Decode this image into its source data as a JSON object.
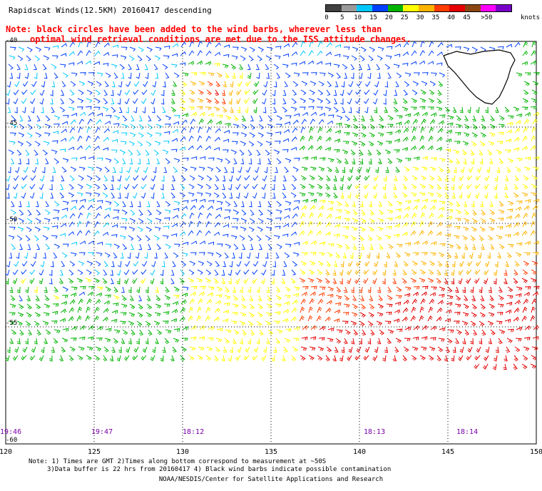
{
  "header": {
    "title": "Rapidscat Winds(12.5KM) 20160417 descending",
    "note_line1": "Note: black circles have been added to the wind barbs, wherever less than",
    "note_line2": "optimal wind retrieval conditions are met due to the ISS attitude changes."
  },
  "colorbar": {
    "ticks": [
      "0",
      "5",
      "10",
      "15",
      "20",
      "25",
      "30",
      "35",
      "40",
      "45",
      ">50"
    ],
    "unit": "knots",
    "colors": [
      "#404040",
      "#9a9a9a",
      "#00c8ff",
      "#0040ff",
      "#00b400",
      "#ffff00",
      "#ffb400",
      "#ff3c00",
      "#e60000",
      "#8b4513",
      "#ff00ff",
      "#7800c8"
    ]
  },
  "axes": {
    "lon_labels": [
      "120",
      "125",
      "130",
      "135",
      "140",
      "145",
      "150"
    ],
    "lat_labels": [
      "-40",
      "-45",
      "-50",
      "-55",
      "-60"
    ]
  },
  "time_labels": [
    "19:46",
    "19:47",
    "18:12",
    "18:13",
    "18:14"
  ],
  "footnotes": {
    "line1": "Note: 1) Times are GMT 2)Times along bottom correspond to measurement at ~50S",
    "line2": "3)Data buffer is 22 hrs from 20160417 4) Black wind barbs indicate possible contamination",
    "credit": "NOAA/NESDIS/Center for Satellite Applications and Research"
  },
  "land": {
    "name": "Tasmania"
  }
}
